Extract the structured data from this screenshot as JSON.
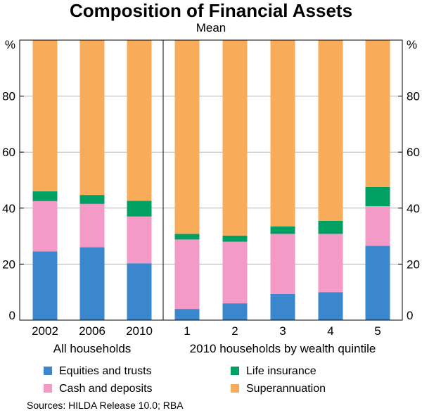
{
  "chart_data": {
    "type": "bar",
    "stacked": true,
    "title": "Composition of Financial Assets",
    "subtitle": "Mean",
    "ylabel": "%",
    "ylim": [
      0,
      100
    ],
    "yticks": [
      0,
      20,
      40,
      60,
      80
    ],
    "groups": [
      {
        "name": "All households",
        "categories": [
          "2002",
          "2006",
          "2010"
        ]
      },
      {
        "name": "2010 households by wealth quintile",
        "categories": [
          "1",
          "2",
          "3",
          "4",
          "5"
        ]
      }
    ],
    "categories": [
      "2002",
      "2006",
      "2010",
      "1",
      "2",
      "3",
      "4",
      "5"
    ],
    "series": [
      {
        "name": "Equities and trusts",
        "color": "#3b87cd",
        "values": [
          24.5,
          26,
          20.3,
          4,
          6,
          9.3,
          10,
          26.5
        ]
      },
      {
        "name": "Cash and deposits",
        "color": "#f49ac7",
        "values": [
          18,
          15.5,
          16.7,
          24.8,
          22,
          21.5,
          20.8,
          14.2
        ]
      },
      {
        "name": "Life insurance",
        "color": "#00a063",
        "values": [
          3.5,
          3.2,
          5.6,
          2,
          2.2,
          2.7,
          4.7,
          6.8
        ]
      },
      {
        "name": "Superannuation",
        "color": "#f8ac5a",
        "values": [
          54,
          55.3,
          57.4,
          69.2,
          69.8,
          66.5,
          64.5,
          52.5
        ]
      }
    ],
    "legend_position": "bottom",
    "legend_order": [
      0,
      2,
      1,
      3
    ]
  },
  "source": "Sources: HILDA Release 10.0; RBA"
}
